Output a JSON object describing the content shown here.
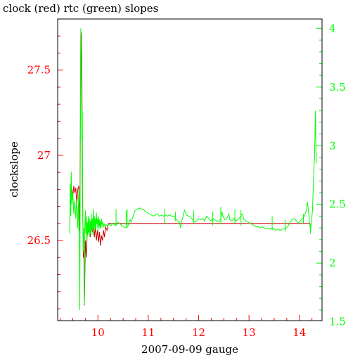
{
  "chart_data": {
    "type": "line",
    "title": "clock (red) rtc (green) slopes",
    "xlabel": "2007-09-09 gauge",
    "ylabel": "clockslope",
    "xlim": [
      9.2,
      14.45
    ],
    "x_ticks": [
      10,
      11,
      12,
      13,
      14
    ],
    "x_tick_labels": [
      "10",
      "11",
      "12",
      "13",
      "14"
    ],
    "ylim_left": [
      26.03,
      27.8
    ],
    "y_ticks_left": [
      26.5,
      27,
      27.5
    ],
    "y_tick_labels_left": [
      "26.5",
      "27",
      "27.5"
    ],
    "ylim_right": [
      1.51,
      4.08
    ],
    "y_ticks_right": [
      1.5,
      2,
      2.5,
      3,
      3.5,
      4
    ],
    "y_tick_labels_right": [
      "1.5",
      "2",
      "2.5",
      "3",
      "3.5",
      "4"
    ],
    "grid": false,
    "colors": {
      "clock": "#cc0000",
      "rtc": "#00ff00",
      "left_axis": "#ff0000",
      "right_axis": "#00ff00",
      "frame": "#000000"
    },
    "series": [
      {
        "name": "clock",
        "axis": "left",
        "points": [
          [
            9.46,
            26.82
          ],
          [
            9.48,
            26.8
          ],
          [
            9.5,
            26.76
          ],
          [
            9.52,
            26.82
          ],
          [
            9.54,
            26.78
          ],
          [
            9.56,
            26.81
          ],
          [
            9.58,
            26.7
          ],
          [
            9.6,
            26.8
          ],
          [
            9.62,
            26.82
          ],
          [
            9.64,
            26.55
          ],
          [
            9.66,
            27.7
          ],
          [
            9.67,
            27.72
          ],
          [
            9.68,
            27.58
          ],
          [
            9.69,
            26.85
          ],
          [
            9.7,
            26.62
          ],
          [
            9.71,
            26.4
          ],
          [
            9.72,
            26.45
          ],
          [
            9.73,
            26.12
          ],
          [
            9.74,
            26.3
          ],
          [
            9.75,
            26.5
          ],
          [
            9.77,
            26.4
          ],
          [
            9.79,
            26.58
          ],
          [
            9.81,
            26.55
          ],
          [
            9.83,
            26.6
          ],
          [
            9.85,
            26.52
          ],
          [
            9.87,
            26.58
          ],
          [
            9.89,
            26.55
          ],
          [
            9.91,
            26.62
          ],
          [
            9.93,
            26.52
          ],
          [
            9.95,
            26.58
          ],
          [
            9.97,
            26.5
          ],
          [
            9.99,
            26.56
          ],
          [
            10.01,
            26.49
          ],
          [
            10.03,
            26.55
          ],
          [
            10.05,
            26.47
          ],
          [
            10.07,
            26.53
          ],
          [
            10.09,
            26.5
          ],
          [
            10.11,
            26.56
          ],
          [
            10.13,
            26.52
          ],
          [
            10.15,
            26.58
          ],
          [
            10.18,
            26.56
          ],
          [
            10.21,
            26.6
          ],
          [
            10.25,
            26.6
          ],
          [
            10.3,
            26.6
          ],
          [
            11.0,
            26.6
          ],
          [
            12.0,
            26.6
          ],
          [
            13.0,
            26.6
          ],
          [
            14.0,
            26.6
          ],
          [
            14.22,
            26.6
          ]
        ]
      },
      {
        "name": "rtc",
        "axis": "right",
        "points": [
          [
            9.44,
            2.25
          ],
          [
            9.45,
            2.68
          ],
          [
            9.46,
            2.4
          ],
          [
            9.47,
            2.78
          ],
          [
            9.48,
            2.5
          ],
          [
            9.5,
            2.6
          ],
          [
            9.52,
            2.42
          ],
          [
            9.54,
            2.53
          ],
          [
            9.56,
            2.38
          ],
          [
            9.58,
            2.55
          ],
          [
            9.6,
            2.3
          ],
          [
            9.62,
            2.62
          ],
          [
            9.63,
            2.2
          ],
          [
            9.64,
            1.6
          ],
          [
            9.65,
            2.9
          ],
          [
            9.66,
            4.0
          ],
          [
            9.67,
            3.8
          ],
          [
            9.68,
            3.05
          ],
          [
            9.69,
            3.3
          ],
          [
            9.7,
            2.4
          ],
          [
            9.71,
            2.1
          ],
          [
            9.72,
            2.3
          ],
          [
            9.73,
            1.65
          ],
          [
            9.74,
            2.3
          ],
          [
            9.75,
            2.45
          ],
          [
            9.76,
            2.25
          ],
          [
            9.77,
            2.4
          ],
          [
            9.78,
            2.2
          ],
          [
            9.79,
            2.35
          ],
          [
            9.8,
            2.24
          ],
          [
            9.81,
            2.4
          ],
          [
            9.82,
            2.26
          ],
          [
            9.83,
            2.38
          ],
          [
            9.84,
            2.22
          ],
          [
            9.85,
            2.36
          ],
          [
            9.86,
            2.25
          ],
          [
            9.87,
            2.42
          ],
          [
            9.88,
            2.28
          ],
          [
            9.89,
            2.38
          ],
          [
            9.9,
            2.24
          ],
          [
            9.91,
            2.46
          ],
          [
            9.92,
            2.3
          ],
          [
            9.93,
            2.4
          ],
          [
            9.94,
            2.28
          ],
          [
            9.95,
            2.38
          ],
          [
            9.96,
            2.3
          ],
          [
            9.97,
            2.43
          ],
          [
            9.98,
            2.33
          ],
          [
            9.99,
            2.38
          ],
          [
            10.0,
            2.27
          ],
          [
            10.01,
            2.4
          ],
          [
            10.02,
            2.31
          ],
          [
            10.03,
            2.37
          ],
          [
            10.04,
            2.29
          ],
          [
            10.05,
            2.36
          ],
          [
            10.06,
            2.3
          ],
          [
            10.07,
            2.38
          ],
          [
            10.08,
            2.33
          ],
          [
            10.09,
            2.35
          ],
          [
            10.1,
            2.3
          ],
          [
            10.12,
            2.34
          ],
          [
            10.14,
            2.31
          ],
          [
            10.16,
            2.33
          ],
          [
            10.18,
            2.32
          ],
          [
            10.22,
            2.33
          ],
          [
            10.26,
            2.32
          ],
          [
            10.3,
            2.34
          ],
          [
            10.34,
            2.32
          ],
          [
            10.38,
            2.33
          ],
          [
            10.4,
            2.35
          ],
          [
            10.42,
            2.34
          ],
          [
            10.45,
            2.33
          ],
          [
            10.5,
            2.31
          ],
          [
            10.55,
            2.3
          ],
          [
            10.6,
            2.32
          ],
          [
            10.64,
            2.37
          ],
          [
            10.66,
            2.35
          ],
          [
            10.68,
            2.38
          ],
          [
            10.7,
            2.4
          ],
          [
            10.72,
            2.43
          ],
          [
            10.74,
            2.45
          ],
          [
            10.78,
            2.46
          ],
          [
            10.82,
            2.47
          ],
          [
            10.86,
            2.46
          ],
          [
            10.9,
            2.46
          ],
          [
            10.94,
            2.44
          ],
          [
            10.98,
            2.43
          ],
          [
            11.02,
            2.42
          ],
          [
            11.06,
            2.41
          ],
          [
            11.1,
            2.4
          ],
          [
            11.14,
            2.41
          ],
          [
            11.18,
            2.42
          ],
          [
            11.22,
            2.4
          ],
          [
            11.26,
            2.41
          ],
          [
            11.3,
            2.4
          ],
          [
            11.34,
            2.41
          ],
          [
            11.38,
            2.4
          ],
          [
            11.42,
            2.41
          ],
          [
            11.46,
            2.4
          ],
          [
            11.5,
            2.4
          ],
          [
            11.54,
            2.38
          ],
          [
            11.58,
            2.36
          ],
          [
            11.62,
            2.35
          ],
          [
            11.64,
            2.3
          ],
          [
            11.66,
            2.36
          ],
          [
            11.68,
            2.38
          ],
          [
            11.7,
            2.42
          ],
          [
            11.72,
            2.45
          ],
          [
            11.74,
            2.43
          ],
          [
            11.76,
            2.41
          ],
          [
            11.8,
            2.4
          ],
          [
            11.84,
            2.39
          ],
          [
            11.88,
            2.37
          ],
          [
            11.92,
            2.35
          ],
          [
            11.96,
            2.36
          ],
          [
            12.0,
            2.38
          ],
          [
            12.04,
            2.37
          ],
          [
            12.08,
            2.38
          ],
          [
            12.12,
            2.36
          ],
          [
            12.16,
            2.4
          ],
          [
            12.2,
            2.38
          ],
          [
            12.24,
            2.36
          ],
          [
            12.28,
            2.38
          ],
          [
            12.32,
            2.37
          ],
          [
            12.36,
            2.36
          ],
          [
            12.4,
            2.35
          ],
          [
            12.44,
            2.38
          ],
          [
            12.46,
            2.44
          ],
          [
            12.48,
            2.4
          ],
          [
            12.52,
            2.37
          ],
          [
            12.56,
            2.38
          ],
          [
            12.6,
            2.42
          ],
          [
            12.62,
            2.37
          ],
          [
            12.66,
            2.36
          ],
          [
            12.7,
            2.38
          ],
          [
            12.74,
            2.36
          ],
          [
            12.78,
            2.37
          ],
          [
            12.82,
            2.39
          ],
          [
            12.86,
            2.42
          ],
          [
            12.88,
            2.4
          ],
          [
            12.9,
            2.37
          ],
          [
            12.94,
            2.36
          ],
          [
            12.98,
            2.35
          ],
          [
            13.02,
            2.34
          ],
          [
            13.06,
            2.33
          ],
          [
            13.1,
            2.32
          ],
          [
            13.14,
            2.31
          ],
          [
            13.18,
            2.31
          ],
          [
            13.22,
            2.3
          ],
          [
            13.26,
            2.31
          ],
          [
            13.3,
            2.3
          ],
          [
            13.34,
            2.29
          ],
          [
            13.38,
            2.3
          ],
          [
            13.42,
            2.29
          ],
          [
            13.46,
            2.3
          ],
          [
            13.5,
            2.29
          ],
          [
            13.54,
            2.28
          ],
          [
            13.58,
            2.29
          ],
          [
            13.62,
            2.28
          ],
          [
            13.66,
            2.29
          ],
          [
            13.7,
            2.29
          ],
          [
            13.74,
            2.3
          ],
          [
            13.78,
            2.32
          ],
          [
            13.82,
            2.35
          ],
          [
            13.86,
            2.37
          ],
          [
            13.9,
            2.38
          ],
          [
            13.94,
            2.36
          ],
          [
            13.98,
            2.34
          ],
          [
            14.02,
            2.36
          ],
          [
            14.06,
            2.38
          ],
          [
            14.1,
            2.4
          ],
          [
            14.14,
            2.45
          ],
          [
            14.16,
            2.52
          ],
          [
            14.18,
            2.45
          ],
          [
            14.2,
            2.35
          ],
          [
            14.22,
            2.28
          ],
          [
            14.24,
            2.36
          ],
          [
            14.26,
            2.45
          ],
          [
            14.28,
            2.7
          ],
          [
            14.3,
            2.9
          ],
          [
            14.31,
            3.1
          ],
          [
            14.32,
            3.3
          ],
          [
            14.33,
            2.95
          ],
          [
            14.34,
            2.85
          ]
        ]
      }
    ],
    "spikes_right": [
      [
        9.62,
        2.28,
        2.48
      ],
      [
        10.36,
        2.32,
        2.46
      ],
      [
        10.56,
        2.32,
        2.45
      ],
      [
        10.58,
        2.3,
        2.46
      ],
      [
        11.32,
        2.33,
        2.46
      ],
      [
        11.54,
        2.36,
        2.44
      ],
      [
        11.9,
        2.34,
        2.45
      ],
      [
        12.28,
        2.32,
        2.44
      ],
      [
        12.44,
        2.33,
        2.48
      ],
      [
        12.72,
        2.34,
        2.46
      ],
      [
        12.84,
        2.32,
        2.45
      ],
      [
        13.46,
        2.28,
        2.4
      ],
      [
        13.72,
        2.27,
        2.37
      ],
      [
        14.08,
        2.33,
        2.42
      ],
      [
        14.22,
        2.25,
        2.33
      ]
    ]
  }
}
